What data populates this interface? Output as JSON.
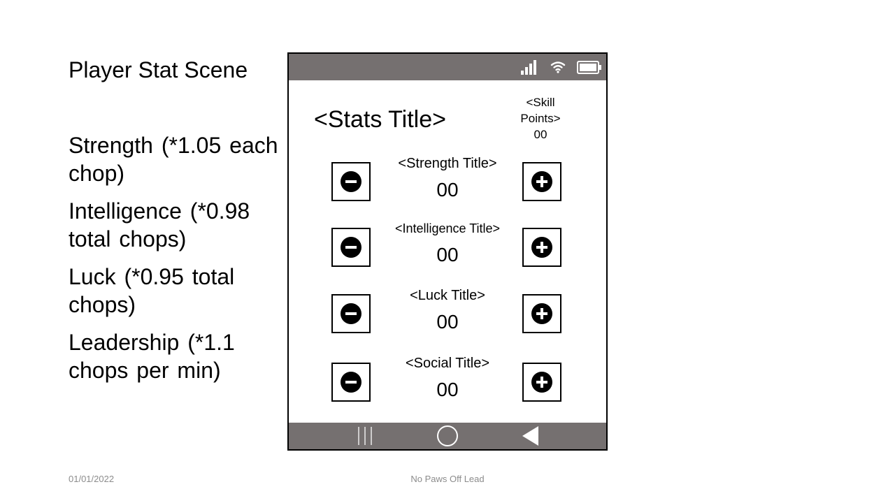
{
  "slide": {
    "title": "Player Stat Scene",
    "notes": [
      "Strength (*1.05 each chop)",
      "Intelligence (*0.98 total chops)",
      "Luck (*0.95 total chops)",
      "Leadership (*1.1 chops per min)"
    ],
    "footer_date": "01/01/2022",
    "footer_center": "No Paws Off Lead"
  },
  "phone": {
    "status_icons": [
      "signal-icon",
      "wifi-icon",
      "battery-icon"
    ],
    "nav_icons": [
      "recent-apps-icon",
      "home-icon",
      "back-icon"
    ],
    "bar_color": "#757070",
    "stats_title": "<Stats Title>",
    "skill_points_label": "<Skill Points>",
    "skill_points_value": "00",
    "stats": [
      {
        "label": "<Strength Title>",
        "value": "00"
      },
      {
        "label": "<Intelligence Title>",
        "value": "00"
      },
      {
        "label": "<Luck Title>",
        "value": "00"
      },
      {
        "label": "<Social Title>",
        "value": "00"
      }
    ],
    "button_icons": {
      "decrement": "minus-circle-icon",
      "increment": "plus-circle-icon"
    }
  }
}
